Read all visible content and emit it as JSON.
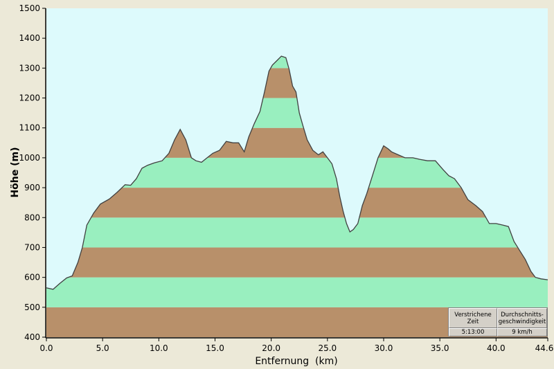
{
  "chart_data": {
    "type": "area",
    "xlabel": "Entfernung  (km)",
    "ylabel": "Höhe (m)",
    "xlim": [
      0,
      44.6
    ],
    "ylim": [
      400,
      1500
    ],
    "x_ticks": [
      "0.0",
      "5.0",
      "10.0",
      "15.0",
      "20.0",
      "25.0",
      "30.0",
      "35.0",
      "40.0",
      "44.6"
    ],
    "y_ticks": [
      "400",
      "500",
      "600",
      "700",
      "800",
      "900",
      "1000",
      "1100",
      "1200",
      "1300",
      "1400",
      "1500"
    ],
    "band_colors": [
      "#b8906a",
      "#99efbf"
    ],
    "background_color": "#ddfafc",
    "line_color": "#404040",
    "profile": {
      "x": [
        0,
        0.6,
        1.2,
        1.8,
        2.3,
        2.8,
        3.2,
        3.6,
        4.2,
        4.8,
        5.6,
        6.3,
        7.0,
        7.5,
        8.0,
        8.5,
        9.0,
        9.6,
        10.3,
        10.9,
        11.4,
        11.9,
        12.4,
        12.9,
        13.3,
        13.8,
        14.3,
        14.8,
        15.4,
        16.0,
        16.6,
        17.1,
        17.6,
        18.0,
        18.5,
        19.0,
        19.4,
        19.8,
        20.1,
        20.5,
        20.9,
        21.3,
        21.6,
        21.9,
        22.2,
        22.5,
        22.8,
        23.2,
        23.7,
        24.2,
        24.6,
        25.0,
        25.4,
        25.8,
        26.1,
        26.4,
        26.7,
        27.0,
        27.3,
        27.7,
        28.1,
        28.5,
        29.0,
        29.5,
        30.0,
        30.4,
        30.7,
        31.3,
        31.9,
        32.6,
        33.2,
        33.9,
        34.6,
        35.3,
        35.8,
        36.3,
        36.9,
        37.5,
        38.2,
        38.8,
        39.4,
        40.0,
        40.6,
        41.1,
        41.6,
        42.1,
        42.6,
        43.1,
        43.5,
        44.0,
        44.6
      ],
      "y": [
        565,
        560,
        580,
        598,
        605,
        650,
        700,
        775,
        815,
        845,
        862,
        885,
        910,
        908,
        930,
        965,
        975,
        983,
        990,
        1015,
        1060,
        1095,
        1060,
        1000,
        990,
        985,
        1000,
        1015,
        1025,
        1055,
        1050,
        1050,
        1020,
        1070,
        1115,
        1155,
        1220,
        1290,
        1310,
        1325,
        1340,
        1335,
        1295,
        1240,
        1220,
        1150,
        1110,
        1060,
        1025,
        1010,
        1020,
        1000,
        980,
        930,
        870,
        820,
        780,
        752,
        760,
        780,
        840,
        880,
        940,
        1000,
        1040,
        1030,
        1020,
        1010,
        1000,
        1000,
        995,
        990,
        990,
        960,
        940,
        930,
        900,
        860,
        840,
        820,
        780,
        780,
        775,
        770,
        720,
        690,
        660,
        620,
        600,
        595,
        592
      ]
    },
    "stats": {
      "headers": [
        "Verstrichene Zeit",
        "Durchschnitts-geschwindigkeit"
      ],
      "values": [
        "5:13:00",
        "9 km/h"
      ]
    }
  }
}
